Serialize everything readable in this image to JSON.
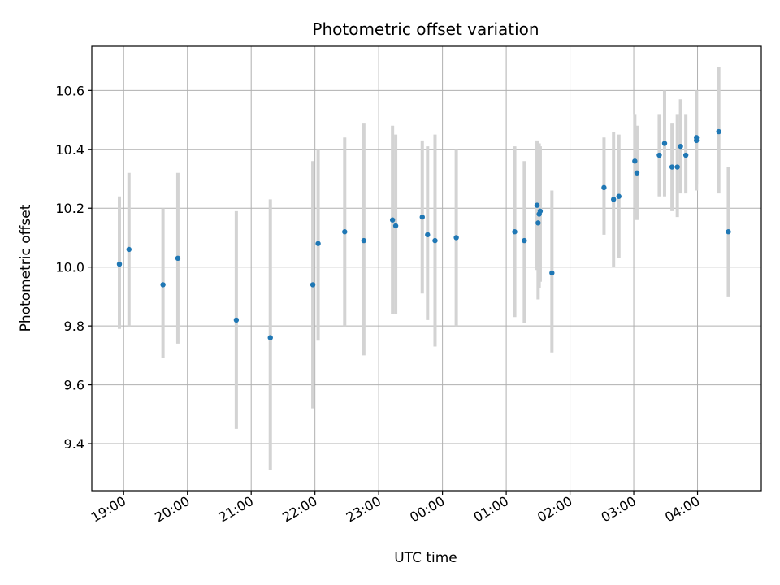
{
  "chart_data": {
    "type": "scatter",
    "title": "Photometric offset variation",
    "xlabel": "UTC time",
    "ylabel": "Photometric offset",
    "x_is_time": true,
    "xlim": [
      "18:30",
      "05:00"
    ],
    "ylim": [
      9.24,
      10.75
    ],
    "yticks": [
      9.4,
      9.6,
      9.8,
      10.0,
      10.2,
      10.4,
      10.6
    ],
    "ytick_labels": [
      "9.4",
      "9.6",
      "9.8",
      "10.0",
      "10.2",
      "10.4",
      "10.6"
    ],
    "xticks": [
      "19:00",
      "20:00",
      "21:00",
      "22:00",
      "23:00",
      "00:00",
      "01:00",
      "02:00",
      "03:00",
      "04:00"
    ],
    "xtick_labels": [
      "19:00",
      "20:00",
      "21:00",
      "22:00",
      "23:00",
      "00:00",
      "01:00",
      "02:00",
      "03:00",
      "04:00"
    ],
    "grid": true,
    "colors": {
      "point": "#1f77b4",
      "errorbar": "#d3d3d3",
      "grid": "#b0b0b0"
    },
    "points": [
      {
        "time": "18:56",
        "y": 10.01,
        "lo": 9.79,
        "hi": 10.24
      },
      {
        "time": "19:05",
        "y": 10.06,
        "lo": 9.8,
        "hi": 10.32
      },
      {
        "time": "19:37",
        "y": 9.94,
        "lo": 9.69,
        "hi": 10.2
      },
      {
        "time": "19:51",
        "y": 10.03,
        "lo": 9.74,
        "hi": 10.32
      },
      {
        "time": "20:46",
        "y": 9.82,
        "lo": 9.45,
        "hi": 10.19
      },
      {
        "time": "21:18",
        "y": 9.76,
        "lo": 9.31,
        "hi": 10.23
      },
      {
        "time": "21:58",
        "y": 9.94,
        "lo": 9.52,
        "hi": 10.36
      },
      {
        "time": "22:03",
        "y": 10.08,
        "lo": 9.75,
        "hi": 10.4
      },
      {
        "time": "22:28",
        "y": 10.12,
        "lo": 9.8,
        "hi": 10.44
      },
      {
        "time": "22:46",
        "y": 10.09,
        "lo": 9.7,
        "hi": 10.49
      },
      {
        "time": "23:13",
        "y": 10.16,
        "lo": 9.84,
        "hi": 10.48
      },
      {
        "time": "23:16",
        "y": 10.14,
        "lo": 9.84,
        "hi": 10.45
      },
      {
        "time": "23:41",
        "y": 10.17,
        "lo": 9.91,
        "hi": 10.43
      },
      {
        "time": "23:46",
        "y": 10.11,
        "lo": 9.82,
        "hi": 10.41
      },
      {
        "time": "23:53",
        "y": 10.09,
        "lo": 9.73,
        "hi": 10.45
      },
      {
        "time": "00:13",
        "y": 10.1,
        "lo": 9.8,
        "hi": 10.4
      },
      {
        "time": "01:08",
        "y": 10.12,
        "lo": 9.83,
        "hi": 10.41
      },
      {
        "time": "01:17",
        "y": 10.09,
        "lo": 9.81,
        "hi": 10.36
      },
      {
        "time": "01:29",
        "y": 10.21,
        "lo": 9.99,
        "hi": 10.43
      },
      {
        "time": "01:30",
        "y": 10.15,
        "lo": 9.89,
        "hi": 10.42
      },
      {
        "time": "01:31",
        "y": 10.18,
        "lo": 9.93,
        "hi": 10.42
      },
      {
        "time": "01:32",
        "y": 10.19,
        "lo": 9.95,
        "hi": 10.41
      },
      {
        "time": "01:43",
        "y": 9.98,
        "lo": 9.71,
        "hi": 10.26
      },
      {
        "time": "02:32",
        "y": 10.27,
        "lo": 10.11,
        "hi": 10.44
      },
      {
        "time": "02:41",
        "y": 10.23,
        "lo": 10.0,
        "hi": 10.46
      },
      {
        "time": "02:46",
        "y": 10.24,
        "lo": 10.03,
        "hi": 10.45
      },
      {
        "time": "03:01",
        "y": 10.36,
        "lo": 10.2,
        "hi": 10.52
      },
      {
        "time": "03:03",
        "y": 10.32,
        "lo": 10.16,
        "hi": 10.48
      },
      {
        "time": "03:24",
        "y": 10.38,
        "lo": 10.24,
        "hi": 10.52
      },
      {
        "time": "03:29",
        "y": 10.42,
        "lo": 10.24,
        "hi": 10.6
      },
      {
        "time": "03:36",
        "y": 10.34,
        "lo": 10.19,
        "hi": 10.49
      },
      {
        "time": "03:41",
        "y": 10.34,
        "lo": 10.17,
        "hi": 10.52
      },
      {
        "time": "03:44",
        "y": 10.41,
        "lo": 10.25,
        "hi": 10.57
      },
      {
        "time": "03:49",
        "y": 10.38,
        "lo": 10.25,
        "hi": 10.52
      },
      {
        "time": "03:59",
        "y": 10.43,
        "lo": 10.26,
        "hi": 10.6
      },
      {
        "time": "03:59",
        "y": 10.44,
        "lo": 10.28,
        "hi": 10.6
      },
      {
        "time": "04:20",
        "y": 10.46,
        "lo": 10.25,
        "hi": 10.68
      },
      {
        "time": "04:29",
        "y": 10.12,
        "lo": 9.9,
        "hi": 10.34
      }
    ]
  }
}
